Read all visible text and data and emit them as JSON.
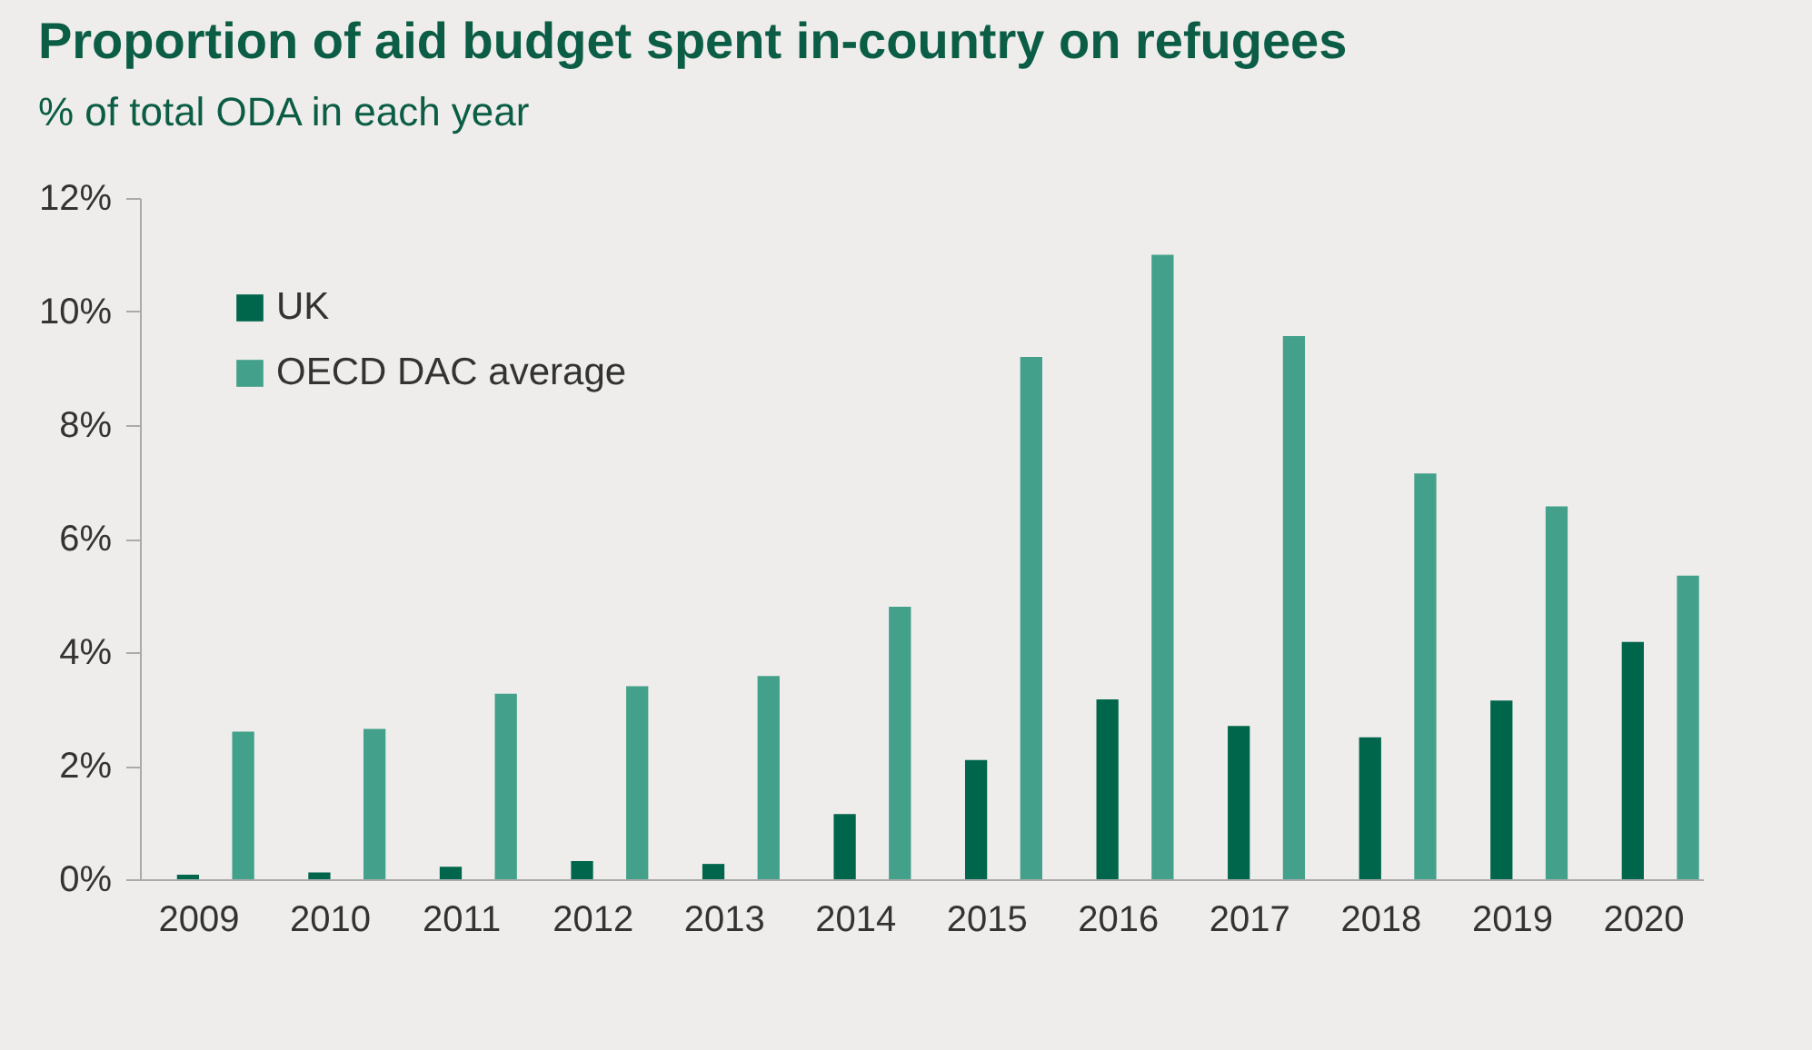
{
  "chart_data": {
    "type": "bar",
    "title": "Proportion of aid budget spent in-country on refugees",
    "subtitle": "% of total ODA in each year",
    "categories": [
      "2009",
      "2010",
      "2011",
      "2012",
      "2013",
      "2014",
      "2015",
      "2016",
      "2017",
      "2018",
      "2019",
      "2020"
    ],
    "series": [
      {
        "name": "UK",
        "color": "#00664b",
        "values": [
          0.08,
          0.12,
          0.22,
          0.32,
          0.27,
          1.15,
          2.1,
          3.17,
          2.7,
          2.5,
          3.15,
          4.18
        ]
      },
      {
        "name": "OECD DAC average",
        "color": "#43a08a",
        "values": [
          2.6,
          2.65,
          3.27,
          3.4,
          3.58,
          4.8,
          9.2,
          11.0,
          9.57,
          7.15,
          6.57,
          5.35
        ]
      }
    ],
    "ylim": [
      0,
      12
    ],
    "yticks": [
      {
        "value": 0,
        "label": "0%"
      },
      {
        "value": 2,
        "label": "2%"
      },
      {
        "value": 4,
        "label": "4%"
      },
      {
        "value": 6,
        "label": "6%"
      },
      {
        "value": 8,
        "label": "8%"
      },
      {
        "value": 10,
        "label": "10%"
      },
      {
        "value": 12,
        "label": "12%"
      }
    ],
    "grid": false,
    "legend": "top left"
  }
}
